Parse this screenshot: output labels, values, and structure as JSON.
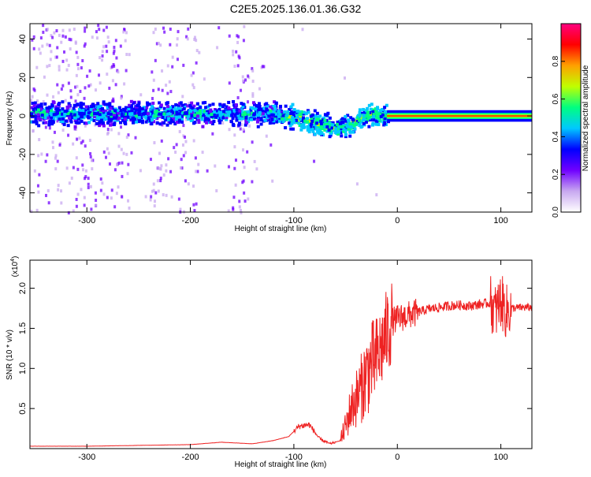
{
  "title": "C2E5.2025.136.01.36.G32",
  "chart_data": [
    {
      "type": "heatmap",
      "xlabel": "Height of straight line (km)",
      "ylabel": "Frequency (Hz)",
      "xlim": [
        -355,
        130
      ],
      "ylim": [
        -50,
        48
      ],
      "xticks": [
        -300,
        -200,
        -100,
        0,
        100
      ],
      "yticks": [
        -40,
        -20,
        0,
        20,
        40
      ],
      "colorbar": {
        "label": "Normalized spectral amplitude",
        "range": [
          0.0,
          1.0
        ],
        "ticks": [
          "0.0",
          "0.2",
          "0.4",
          "0.6",
          "0.8"
        ],
        "colors": [
          "#ffffff",
          "#c8a8f0",
          "#7000ff",
          "#0000ff",
          "#00c8ff",
          "#00ff80",
          "#c0ff00",
          "#ffa000",
          "#ff0000",
          "#ff0080"
        ]
      },
      "features": {
        "noise_band_x": [
          -355,
          -20
        ],
        "tone_center_hz": 0,
        "tone_band_start_x": -10,
        "tone_band_end_x": 130,
        "tone_drift_x": [
          -120,
          -100,
          -80,
          -60,
          -45,
          -35,
          -25,
          -15
        ],
        "tone_drift_y": [
          2,
          0,
          -3,
          -6,
          -3,
          0,
          2,
          1
        ]
      }
    },
    {
      "type": "line",
      "xlabel": "Height of straight line (km)",
      "ylabel": "SNR (10 * v/v)",
      "yscale_label": "(x10",
      "yscale_exp": "4",
      "xlim": [
        -355,
        130
      ],
      "ylim": [
        0,
        2.35
      ],
      "xticks": [
        -300,
        -200,
        -100,
        0,
        100
      ],
      "yticks": [
        "0.5",
        "1.0",
        "1.5",
        "2.0"
      ],
      "color": "#ee2222",
      "series": [
        {
          "x": [
            -355,
            -300,
            -250,
            -200,
            -170,
            -140,
            -120,
            -105,
            -95,
            -85,
            -75,
            -65,
            -55,
            -50,
            -45,
            -40,
            -35,
            -30,
            -25,
            -20,
            -15,
            -10,
            -5,
            0,
            10,
            20,
            30,
            40,
            50,
            60,
            70,
            80,
            90,
            95,
            100,
            105,
            110,
            120,
            130
          ],
          "y": [
            0.03,
            0.03,
            0.04,
            0.05,
            0.08,
            0.06,
            0.1,
            0.15,
            0.28,
            0.3,
            0.12,
            0.06,
            0.1,
            0.28,
            0.5,
            0.62,
            0.75,
            0.92,
            1.05,
            1.12,
            1.28,
            1.45,
            1.58,
            1.62,
            1.66,
            1.7,
            1.74,
            1.76,
            1.78,
            1.79,
            1.78,
            1.8,
            1.82,
            1.7,
            1.85,
            1.7,
            1.75,
            1.76,
            1.76
          ]
        }
      ]
    }
  ]
}
